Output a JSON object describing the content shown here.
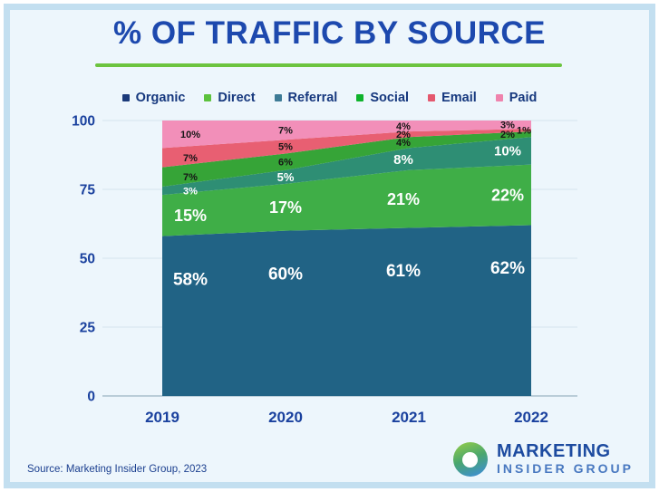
{
  "header": {
    "title": "% OF TRAFFIC BY SOURCE"
  },
  "theme": {
    "background": "#edf6fc",
    "frame_border": "#c3dff0",
    "title_color": "#1d49ae",
    "underline_color": "#6cc43f",
    "legend_text_color": "#16387e",
    "axis_text_color": "#1a419e",
    "gridline_color": "#d5e4ee",
    "axis_line_color": "#a9bfcc"
  },
  "chart_data": {
    "type": "area",
    "stacked": true,
    "title": "% OF TRAFFIC BY SOURCE",
    "categories": [
      "2019",
      "2020",
      "2021",
      "2022"
    ],
    "series": [
      {
        "name": "Organic",
        "values": [
          58,
          60,
          61,
          62
        ],
        "color": "#216385",
        "legend_color": "#1b3a7a",
        "label_color": "#ffffff"
      },
      {
        "name": "Direct",
        "values": [
          15,
          17,
          21,
          22
        ],
        "color": "#3fae47",
        "legend_color": "#5cc23d",
        "label_color": "#ffffff"
      },
      {
        "name": "Referral",
        "values": [
          3,
          5,
          8,
          10
        ],
        "color": "#2e8e74",
        "legend_color": "#3d7b96",
        "label_color": "#ffffff"
      },
      {
        "name": "Social",
        "values": [
          7,
          6,
          4,
          2
        ],
        "color": "#36a437",
        "legend_color": "#0fb32c",
        "label_color": "#161616"
      },
      {
        "name": "Email",
        "values": [
          7,
          5,
          2,
          1
        ],
        "color": "#e85f72",
        "legend_color": "#e4586e",
        "label_color": "#161616"
      },
      {
        "name": "Paid",
        "values": [
          10,
          7,
          4,
          3
        ],
        "color": "#f28fb9",
        "legend_color": "#ef83ad",
        "label_color": "#161616"
      }
    ],
    "label_format": "percent",
    "y_ticks": [
      0,
      25,
      50,
      75,
      100
    ],
    "ylim": [
      0,
      100
    ],
    "grid": true,
    "legend_position": "top"
  },
  "footer": {
    "source": "Source: Marketing Insider Group, 2023",
    "logo_line1": "MARKETING",
    "logo_line2": "INSIDER GROUP"
  }
}
